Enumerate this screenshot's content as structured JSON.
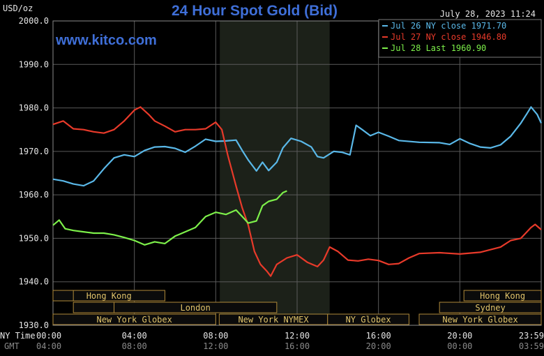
{
  "header": {
    "unit": "USD/oz",
    "title": "24 Hour Spot Gold (Bid)",
    "timestamp": "July 28, 2023 11:24",
    "brand": "www.kitco.com"
  },
  "axis_labels": {
    "ny_time": "NY Time",
    "gmt": "GMT"
  },
  "colors": {
    "background": "#000000",
    "grid": "#5a5a5a",
    "highlight": "#1c2119",
    "title": "#3f6fd8",
    "jul26": "#5ab8e8",
    "jul27": "#e83a2a",
    "jul28": "#7df04a",
    "session_text": "#e0c36a",
    "session_border": "#b08a3a"
  },
  "sessions": [
    {
      "label": "Hong Kong",
      "start": 0,
      "end": 5.5
    },
    {
      "label": "",
      "start": 0,
      "end": 1
    },
    {
      "label": "London",
      "start": 3,
      "end": 11
    },
    {
      "label": "",
      "start": 1,
      "end": 3
    },
    {
      "label": "New York Globex",
      "start": 0,
      "end": 8
    },
    {
      "label": "New York NYMEX",
      "start": 8.17,
      "end": 13.5
    },
    {
      "label": "NY Globex",
      "start": 13.5,
      "end": 17.5
    },
    {
      "label": "Hong Kong",
      "start": 20.2,
      "end": 24
    },
    {
      "label": "Sydney",
      "start": 19,
      "end": 24
    },
    {
      "label": "New York Globex",
      "start": 18,
      "end": 24
    }
  ],
  "chart_data": {
    "type": "line",
    "title": "24 Hour Spot Gold (Bid)",
    "ylabel": "USD/oz",
    "xlabel": "NY Time / GMT",
    "ylim": [
      1930,
      2000
    ],
    "xlim": [
      0,
      24
    ],
    "y_ticks": [
      "2000.0",
      "1990.0",
      "1980.0",
      "1970.0",
      "1960.0",
      "1950.0",
      "1940.0",
      "1930.0"
    ],
    "x_ticks_ny": [
      "00:00",
      "04:00",
      "08:00",
      "12:00",
      "16:00",
      "20:00",
      "23:59"
    ],
    "x_ticks_gmt": [
      "04:00",
      "08:00",
      "12:00",
      "16:00",
      "20:00",
      "00:00",
      "03:59"
    ],
    "highlight_range": [
      8.2,
      13.6
    ],
    "grid": true,
    "legend_position": "top-right",
    "series": [
      {
        "name": "Jul 26 NY close 1971.70",
        "color": "#5ab8e8",
        "points": [
          [
            0,
            1963.6
          ],
          [
            0.5,
            1963.2
          ],
          [
            1,
            1962.5
          ],
          [
            1.5,
            1962.1
          ],
          [
            2,
            1963.2
          ],
          [
            2.5,
            1966
          ],
          [
            3,
            1968.5
          ],
          [
            3.5,
            1969.2
          ],
          [
            4,
            1968.8
          ],
          [
            4.5,
            1970.2
          ],
          [
            5,
            1971
          ],
          [
            5.5,
            1971.1
          ],
          [
            6,
            1970.7
          ],
          [
            6.5,
            1969.8
          ],
          [
            7,
            1971.2
          ],
          [
            7.5,
            1972.8
          ],
          [
            8,
            1972.3
          ],
          [
            8.5,
            1972.4
          ],
          [
            9,
            1972.6
          ],
          [
            9.3,
            1970.2
          ],
          [
            9.6,
            1968
          ],
          [
            10,
            1965.5
          ],
          [
            10.3,
            1967.5
          ],
          [
            10.6,
            1965.6
          ],
          [
            11,
            1967.5
          ],
          [
            11.3,
            1970.8
          ],
          [
            11.7,
            1973
          ],
          [
            12.2,
            1972.3
          ],
          [
            12.7,
            1971
          ],
          [
            13,
            1968.8
          ],
          [
            13.3,
            1968.5
          ],
          [
            13.8,
            1970
          ],
          [
            14.2,
            1969.8
          ],
          [
            14.6,
            1969.2
          ],
          [
            14.9,
            1976
          ],
          [
            15.2,
            1975
          ],
          [
            15.6,
            1973.6
          ],
          [
            16,
            1974.4
          ],
          [
            16.5,
            1973.5
          ],
          [
            17,
            1972.5
          ],
          [
            18,
            1972.1
          ],
          [
            19,
            1972
          ],
          [
            19.5,
            1971.6
          ],
          [
            20,
            1972.9
          ],
          [
            20.5,
            1971.8
          ],
          [
            21,
            1971
          ],
          [
            21.5,
            1970.8
          ],
          [
            22,
            1971.5
          ],
          [
            22.5,
            1973.5
          ],
          [
            23,
            1976.5
          ],
          [
            23.3,
            1978.7
          ],
          [
            23.5,
            1980.2
          ],
          [
            23.8,
            1978.5
          ],
          [
            24,
            1976.5
          ]
        ]
      },
      {
        "name": "Jul 27 NY close 1946.80",
        "color": "#e83a2a",
        "points": [
          [
            0,
            1976.2
          ],
          [
            0.5,
            1977
          ],
          [
            1,
            1975.2
          ],
          [
            1.5,
            1975
          ],
          [
            2,
            1974.5
          ],
          [
            2.5,
            1974.2
          ],
          [
            3,
            1975
          ],
          [
            3.5,
            1977
          ],
          [
            4,
            1979.5
          ],
          [
            4.3,
            1980.2
          ],
          [
            4.7,
            1978.5
          ],
          [
            5,
            1977
          ],
          [
            5.5,
            1975.8
          ],
          [
            6,
            1974.5
          ],
          [
            6.5,
            1975
          ],
          [
            7,
            1975
          ],
          [
            7.5,
            1975.2
          ],
          [
            8,
            1976.7
          ],
          [
            8.3,
            1975
          ],
          [
            8.6,
            1969
          ],
          [
            9,
            1962
          ],
          [
            9.3,
            1957
          ],
          [
            9.6,
            1953
          ],
          [
            9.9,
            1947
          ],
          [
            10.2,
            1944
          ],
          [
            10.5,
            1942.5
          ],
          [
            10.7,
            1941.3
          ],
          [
            11,
            1944
          ],
          [
            11.5,
            1945.5
          ],
          [
            12,
            1946.2
          ],
          [
            12.5,
            1944.5
          ],
          [
            13,
            1943.5
          ],
          [
            13.3,
            1945
          ],
          [
            13.6,
            1948
          ],
          [
            14,
            1947
          ],
          [
            14.5,
            1945
          ],
          [
            15,
            1944.8
          ],
          [
            15.5,
            1945.2
          ],
          [
            16,
            1944.9
          ],
          [
            16.5,
            1944
          ],
          [
            17,
            1944.2
          ],
          [
            17.5,
            1945.5
          ],
          [
            18,
            1946.5
          ],
          [
            19,
            1946.7
          ],
          [
            20,
            1946.4
          ],
          [
            21,
            1946.8
          ],
          [
            22,
            1948
          ],
          [
            22.5,
            1949.5
          ],
          [
            23,
            1950
          ],
          [
            23.5,
            1952.5
          ],
          [
            23.7,
            1953.2
          ],
          [
            24,
            1952
          ]
        ]
      },
      {
        "name": "Jul 28 Last 1960.90",
        "color": "#7df04a",
        "points": [
          [
            0,
            1953
          ],
          [
            0.3,
            1954.2
          ],
          [
            0.6,
            1952.2
          ],
          [
            1,
            1951.8
          ],
          [
            1.5,
            1951.5
          ],
          [
            2,
            1951.2
          ],
          [
            2.5,
            1951.2
          ],
          [
            3,
            1950.8
          ],
          [
            3.5,
            1950.2
          ],
          [
            4,
            1949.5
          ],
          [
            4.5,
            1948.5
          ],
          [
            5,
            1949.2
          ],
          [
            5.5,
            1948.8
          ],
          [
            6,
            1950.5
          ],
          [
            6.5,
            1951.5
          ],
          [
            7,
            1952.5
          ],
          [
            7.5,
            1955
          ],
          [
            8,
            1956
          ],
          [
            8.5,
            1955.5
          ],
          [
            9,
            1956.5
          ],
          [
            9.3,
            1955
          ],
          [
            9.6,
            1953.5
          ],
          [
            10,
            1954
          ],
          [
            10.3,
            1957.5
          ],
          [
            10.6,
            1958.5
          ],
          [
            11,
            1959
          ],
          [
            11.3,
            1960.5
          ],
          [
            11.5,
            1960.9
          ]
        ]
      }
    ]
  }
}
